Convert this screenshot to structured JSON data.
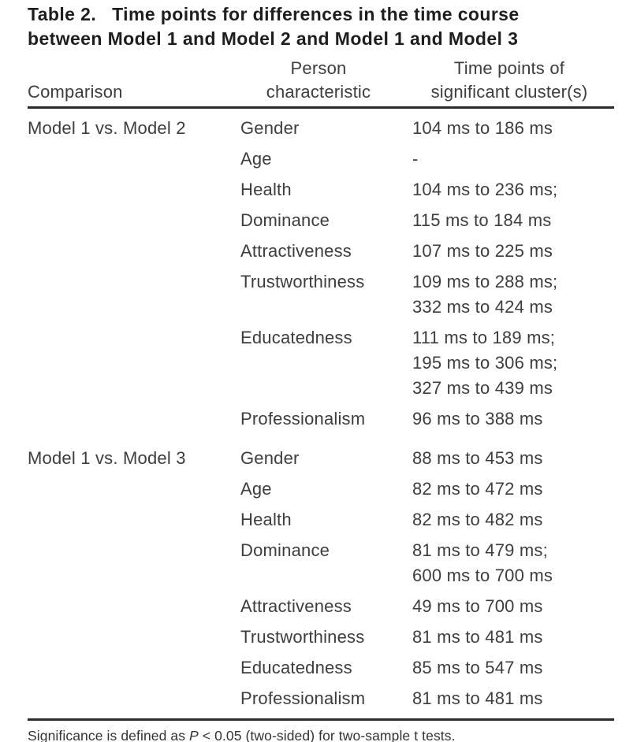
{
  "title": {
    "number": "Table 2.",
    "line1_rest": "Time points for differences in the time course",
    "line2": "between Model 1 and Model 2 and Model 1 and Model 3"
  },
  "header": {
    "comparison": "Comparison",
    "characteristic_line1": "Person",
    "characteristic_line2": "characteristic",
    "timepoints_line1": "Time points of",
    "timepoints_line2": "significant cluster(s)"
  },
  "table": {
    "sections": [
      {
        "comparison": "Model 1 vs. Model 2",
        "rows": [
          {
            "characteristic": "Gender",
            "times": [
              "104 ms to 186 ms"
            ]
          },
          {
            "characteristic": "Age",
            "times": [
              "-"
            ]
          },
          {
            "characteristic": "Health",
            "times": [
              "104 ms to 236 ms;"
            ]
          },
          {
            "characteristic": "Dominance",
            "times": [
              "115 ms to 184 ms"
            ]
          },
          {
            "characteristic": "Attractiveness",
            "times": [
              "107 ms to 225 ms"
            ]
          },
          {
            "characteristic": "Trustworthiness",
            "times": [
              "109 ms to 288 ms;",
              "332 ms to 424 ms"
            ]
          },
          {
            "characteristic": "Educatedness",
            "times": [
              "111 ms to 189 ms;",
              "195 ms to 306 ms;",
              "327 ms to 439 ms"
            ]
          },
          {
            "characteristic": "Professionalism",
            "times": [
              "96 ms to 388 ms"
            ]
          }
        ]
      },
      {
        "comparison": "Model 1 vs. Model 3",
        "rows": [
          {
            "characteristic": "Gender",
            "times": [
              "88 ms to 453 ms"
            ]
          },
          {
            "characteristic": "Age",
            "times": [
              "82 ms to 472 ms"
            ]
          },
          {
            "characteristic": "Health",
            "times": [
              "82 ms to 482 ms"
            ]
          },
          {
            "characteristic": "Dominance",
            "times": [
              "81 ms to 479 ms;",
              "600 ms to 700 ms"
            ]
          },
          {
            "characteristic": "Attractiveness",
            "times": [
              "49 ms to 700 ms"
            ]
          },
          {
            "characteristic": "Trustworthiness",
            "times": [
              "81 ms to 481 ms"
            ]
          },
          {
            "characteristic": "Educatedness",
            "times": [
              "85 ms to 547 ms"
            ]
          },
          {
            "characteristic": "Professionalism",
            "times": [
              "81 ms to 481 ms"
            ]
          }
        ]
      }
    ]
  },
  "footnote": {
    "pre": "Significance is defined as ",
    "p": "P",
    "post": " < 0.05 (two-sided) for two-sample t tests."
  },
  "colors": {
    "title_text": "#1e1e1e",
    "body_text": "#3d3d3d",
    "rule": "#2b2b2b",
    "background": "#ffffff"
  }
}
